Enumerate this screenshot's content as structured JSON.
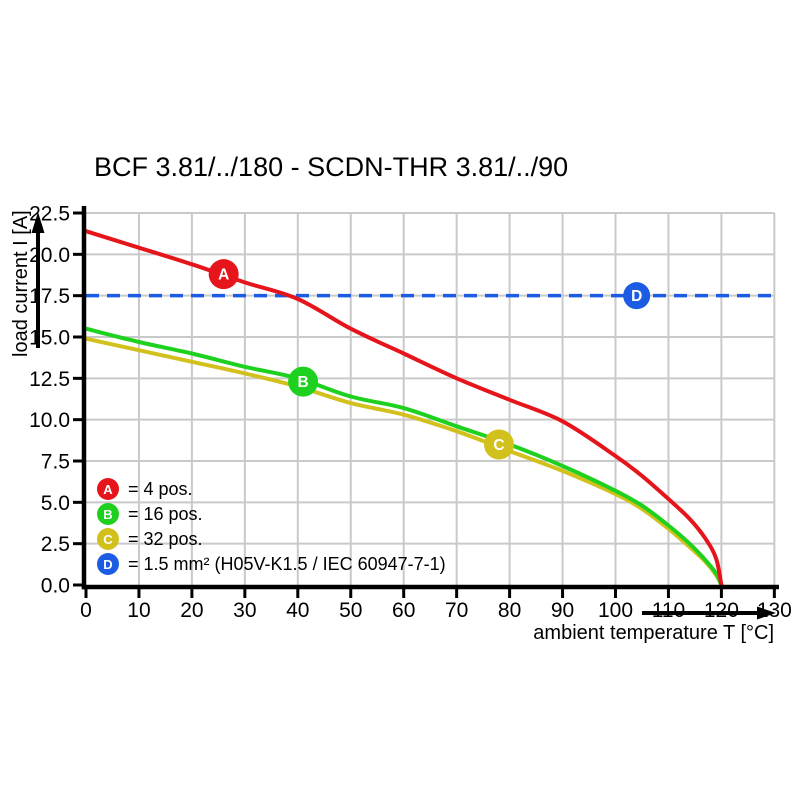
{
  "title": "BCF 3.81/../180 - SCDN-THR 3.81/../90",
  "chart_data": {
    "type": "line",
    "title": "BCF 3.81/../180 - SCDN-THR 3.81/../90",
    "xlabel": "ambient temperature T [°C]",
    "ylabel": "load current I [A]",
    "xlim": [
      0,
      130
    ],
    "ylim": [
      0,
      22.5
    ],
    "grid": true,
    "legend_position": "bottom-left",
    "x_tick_labels": [
      "0",
      "10",
      "20",
      "30",
      "40",
      "50",
      "60",
      "70",
      "80",
      "90",
      "100",
      "110",
      "120",
      "130"
    ],
    "y_tick_labels": [
      "0.0",
      "2.5",
      "5.0",
      "7.5",
      "10.0",
      "12.5",
      "15.0",
      "17.5",
      "20.0",
      "22.5"
    ],
    "colors": {
      "grid": "#c9c9c9",
      "axis": "#000000",
      "background": "#ffffff"
    },
    "series": [
      {
        "key": "A",
        "legend_label": "= 4 pos.",
        "color": "#e5151b",
        "line_style": "solid",
        "marker": {
          "label": "A",
          "x": 26,
          "y": 18.8
        },
        "points": [
          [
            0,
            21.4
          ],
          [
            10,
            20.4
          ],
          [
            20,
            19.4
          ],
          [
            30,
            18.3
          ],
          [
            40,
            17.3
          ],
          [
            50,
            15.5
          ],
          [
            60,
            14.0
          ],
          [
            70,
            12.5
          ],
          [
            80,
            11.2
          ],
          [
            90,
            9.9
          ],
          [
            100,
            7.8
          ],
          [
            105,
            6.6
          ],
          [
            110,
            5.2
          ],
          [
            114,
            4.0
          ],
          [
            117,
            2.8
          ],
          [
            119,
            1.6
          ],
          [
            120,
            0
          ]
        ]
      },
      {
        "key": "B",
        "legend_label": "= 16 pos.",
        "color": "#1fd11f",
        "line_style": "solid",
        "marker": {
          "label": "B",
          "x": 41,
          "y": 12.3
        },
        "points": [
          [
            0,
            15.5
          ],
          [
            10,
            14.7
          ],
          [
            20,
            14.0
          ],
          [
            30,
            13.2
          ],
          [
            40,
            12.5
          ],
          [
            50,
            11.4
          ],
          [
            60,
            10.7
          ],
          [
            70,
            9.6
          ],
          [
            80,
            8.5
          ],
          [
            90,
            7.2
          ],
          [
            100,
            5.7
          ],
          [
            105,
            4.8
          ],
          [
            110,
            3.6
          ],
          [
            114,
            2.5
          ],
          [
            117,
            1.5
          ],
          [
            119,
            0.7
          ],
          [
            120,
            0
          ]
        ]
      },
      {
        "key": "C",
        "legend_label": "= 32 pos.",
        "color": "#d2c01d",
        "line_style": "solid",
        "marker": {
          "label": "C",
          "x": 78,
          "y": 8.5
        },
        "points": [
          [
            0,
            14.9
          ],
          [
            10,
            14.2
          ],
          [
            20,
            13.5
          ],
          [
            30,
            12.8
          ],
          [
            40,
            12.0
          ],
          [
            50,
            11.0
          ],
          [
            60,
            10.3
          ],
          [
            70,
            9.3
          ],
          [
            80,
            8.1
          ],
          [
            90,
            6.9
          ],
          [
            100,
            5.5
          ],
          [
            105,
            4.6
          ],
          [
            110,
            3.4
          ],
          [
            114,
            2.3
          ],
          [
            117,
            1.4
          ],
          [
            119,
            0.6
          ],
          [
            120,
            0
          ]
        ]
      },
      {
        "key": "D",
        "legend_label": "= 1.5 mm² (H05V-K1.5 / IEC 60947-7-1)",
        "color": "#1b5ce2",
        "line_style": "dashed",
        "hline_y": 17.5,
        "marker": {
          "label": "D",
          "x": 104,
          "y": 17.5
        },
        "points": [
          [
            0,
            17.5
          ],
          [
            130,
            17.5
          ]
        ]
      }
    ]
  }
}
